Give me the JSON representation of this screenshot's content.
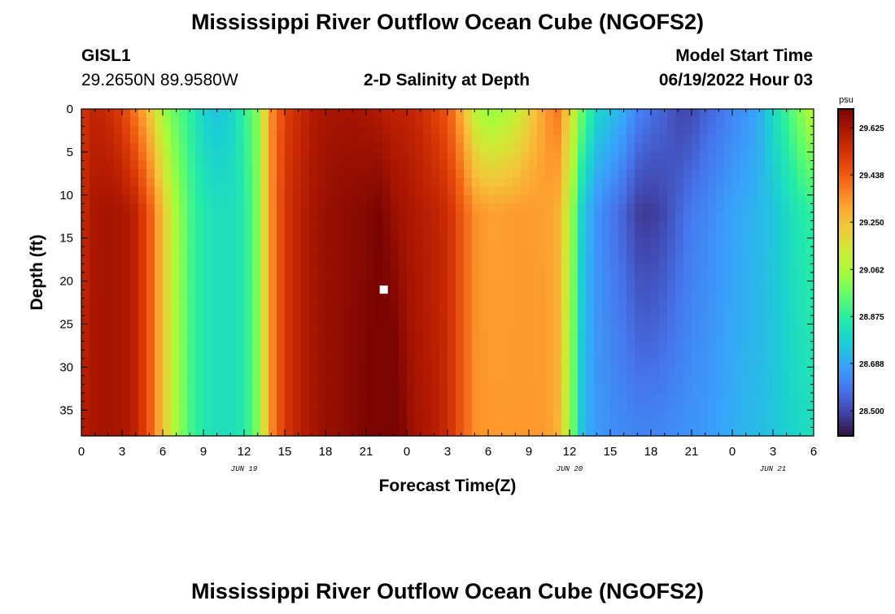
{
  "header": {
    "title": "Mississippi River Outflow Ocean Cube (NGOFS2)",
    "station_id": "GISL1",
    "station_coords": "29.2650N  89.9580W",
    "plot_subtitle": "2-D Salinity at Depth",
    "model_start_label": "Model Start Time",
    "model_start_value": "06/19/2022 Hour 03",
    "repeated_title": "Mississippi River Outflow Ocean Cube (NGOFS2)"
  },
  "colors": {
    "scale": [
      "#30123b",
      "#4145ab",
      "#4675ed",
      "#39a2fc",
      "#1bcfd4",
      "#24eca6",
      "#61fc6c",
      "#a4fc3b",
      "#d1e834",
      "#f3c63a",
      "#fe9b2d",
      "#f36315",
      "#d93806",
      "#b11901",
      "#7a0402"
    ],
    "marker": "#ffffff"
  },
  "chart_data": {
    "type": "heatmap",
    "title": "2-D Salinity at Depth",
    "xlabel": "Forecast Time(Z)",
    "ylabel": "Depth (ft)",
    "x_unit": "hours since 06/19/2022 00Z",
    "xlim": [
      0,
      54
    ],
    "ylim": [
      38,
      0
    ],
    "x_tick_labels": [
      "0",
      "3",
      "6",
      "9",
      "12",
      "15",
      "18",
      "21",
      "0",
      "3",
      "6",
      "9",
      "12",
      "15",
      "18",
      "21",
      "0",
      "3",
      "6"
    ],
    "y_ticks": [
      0,
      5,
      10,
      15,
      20,
      25,
      30,
      35
    ],
    "date_labels": [
      {
        "text": "JUN 19",
        "hour": 12
      },
      {
        "text": "JUN 20",
        "hour": 36
      },
      {
        "text": "JUN 21",
        "hour": 51
      }
    ],
    "colorbar": {
      "unit": "psu",
      "range": [
        28.4,
        29.7
      ],
      "tick_values": [
        29.625,
        29.438,
        29.25,
        29.062,
        28.875,
        28.688,
        28.5
      ],
      "tick_labels": [
        "29.625",
        "29.438",
        "29.250",
        "29.062",
        "28.875",
        "28.688",
        "28.500"
      ]
    },
    "salinity_profile": {
      "hours": [
        0,
        1,
        2,
        3,
        4,
        5,
        6,
        7,
        8,
        9,
        10,
        11,
        12,
        13,
        14,
        15,
        16,
        17,
        18,
        19,
        20,
        21,
        22,
        23,
        24,
        25,
        26,
        27,
        28,
        29,
        30,
        31,
        32,
        33,
        34,
        35,
        36,
        37,
        38,
        39,
        40,
        41,
        42,
        43,
        44,
        45,
        46,
        47,
        48,
        49,
        50,
        51,
        52,
        53,
        54
      ],
      "surface": [
        29.52,
        29.58,
        29.55,
        29.5,
        29.38,
        29.25,
        29.05,
        28.95,
        28.88,
        28.78,
        28.75,
        28.78,
        28.88,
        29.0,
        29.35,
        29.5,
        29.55,
        29.6,
        29.62,
        29.63,
        29.63,
        29.62,
        29.6,
        29.58,
        29.58,
        29.55,
        29.5,
        29.45,
        29.3,
        29.1,
        29.02,
        29.05,
        29.1,
        29.2,
        29.3,
        29.4,
        29.2,
        28.95,
        28.8,
        28.75,
        28.7,
        28.62,
        28.58,
        28.55,
        28.5,
        28.5,
        28.55,
        28.58,
        28.62,
        28.65,
        28.7,
        28.8,
        28.9,
        29.0,
        29.1
      ],
      "mid": [
        29.55,
        29.62,
        29.63,
        29.62,
        29.58,
        29.45,
        29.25,
        29.05,
        28.92,
        28.85,
        28.82,
        28.82,
        28.85,
        29.0,
        29.35,
        29.52,
        29.58,
        29.62,
        29.65,
        29.66,
        29.67,
        29.68,
        29.7,
        29.65,
        29.62,
        29.6,
        29.58,
        29.55,
        29.45,
        29.35,
        29.32,
        29.32,
        29.33,
        29.33,
        29.32,
        29.3,
        29.1,
        28.75,
        28.65,
        28.6,
        28.55,
        28.48,
        28.47,
        28.5,
        28.55,
        28.6,
        28.62,
        28.65,
        28.68,
        28.7,
        28.72,
        28.75,
        28.8,
        28.85,
        28.88
      ],
      "bottom": [
        29.6,
        29.62,
        29.63,
        29.62,
        29.58,
        29.45,
        29.25,
        29.05,
        28.92,
        28.85,
        28.82,
        28.82,
        28.85,
        29.0,
        29.35,
        29.52,
        29.58,
        29.62,
        29.65,
        29.66,
        29.68,
        29.7,
        29.72,
        29.75,
        29.66,
        29.62,
        29.6,
        29.55,
        29.45,
        29.35,
        29.33,
        29.33,
        29.33,
        29.33,
        29.33,
        29.3,
        29.05,
        28.72,
        28.66,
        28.64,
        28.63,
        28.62,
        28.62,
        28.63,
        28.64,
        28.65,
        28.66,
        28.68,
        28.7,
        28.72,
        28.73,
        28.75,
        28.78,
        28.8,
        28.82
      ]
    },
    "marker": {
      "hour": 22.3,
      "depth": 21
    }
  }
}
